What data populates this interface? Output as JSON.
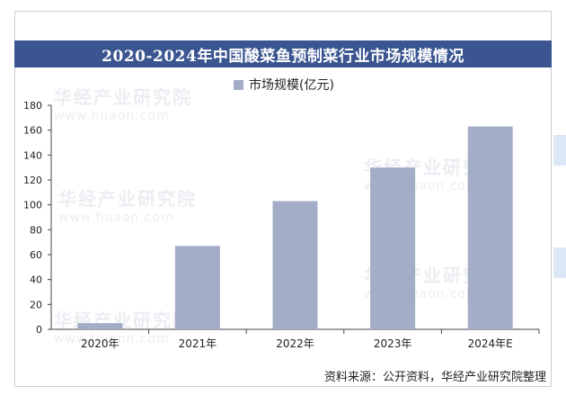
{
  "chart_data": {
    "type": "bar",
    "title": "2020-2024年中国酸菜鱼预制菜行业市场规模情况",
    "categories": [
      "2020年",
      "2021年",
      "2022年",
      "2023年",
      "2024年E"
    ],
    "series": [
      {
        "name": "市场规模(亿元)",
        "values": [
          5,
          67,
          103,
          130,
          163
        ]
      }
    ],
    "ylim": [
      0,
      180
    ],
    "yticks": [
      0,
      20,
      40,
      60,
      80,
      100,
      120,
      140,
      160,
      180
    ],
    "xlabel": "",
    "ylabel": "",
    "grid": false,
    "legend": "top-center",
    "colors": {
      "bar": "#a4adc7",
      "title_bg": "#3a5590",
      "axis": "#444444"
    }
  },
  "source": "资料来源：公开资料，华经产业研究院整理",
  "watermark": {
    "name": "华经产业研究院",
    "url": "www.huaon.com"
  }
}
